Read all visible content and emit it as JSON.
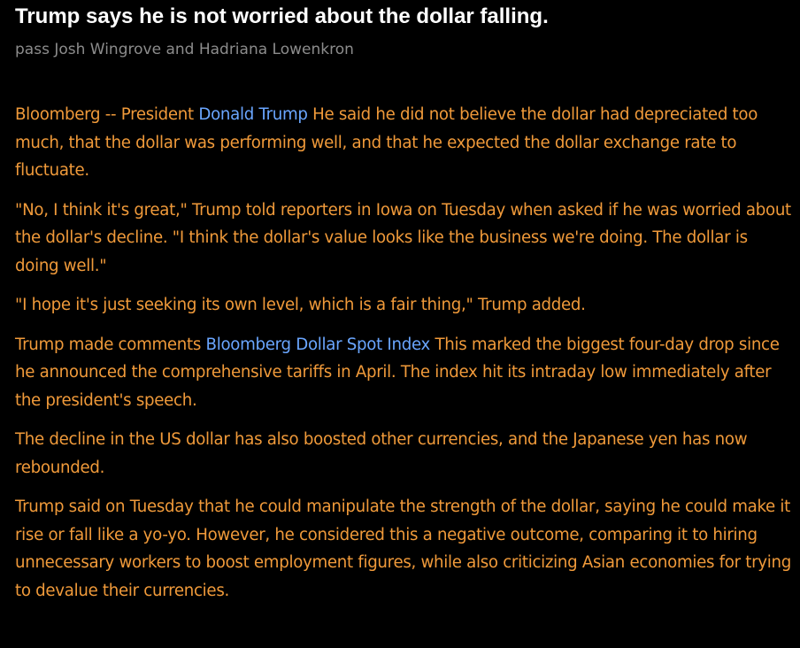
{
  "header": {
    "title": "Trump says he is not worried about the dollar falling.",
    "byline": "pass Josh Wingrove and Hadriana Lowenkron"
  },
  "paragraphs": [
    [
      {
        "text": "Bloomberg -- President ",
        "link": false
      },
      {
        "text": "Donald Trump",
        "link": true
      },
      {
        "text": " He said he did not believe the dollar had depreciated too much, that the dollar was performing well, and that he expected the dollar exchange rate to fluctuate.",
        "link": false
      }
    ],
    [
      {
        "text": "\"No, I think it's great,\" Trump told reporters in Iowa on Tuesday when asked if he was worried about the dollar's decline. \"I think the dollar's value looks like the business we're doing. The dollar is doing well.\"",
        "link": false
      }
    ],
    [
      {
        "text": "\"I hope it's just seeking its own level, which is a fair thing,\" Trump added.",
        "link": false
      }
    ],
    [
      {
        "text": "Trump made comments ",
        "link": false
      },
      {
        "text": "Bloomberg Dollar Spot Index",
        "link": true
      },
      {
        "text": " This marked the biggest four-day drop since he announced the comprehensive tariffs in April. The index hit its intraday low immediately after the president's speech.",
        "link": false
      }
    ],
    [
      {
        "text": "The decline in the US dollar has also boosted other currencies, and the Japanese yen has now rebounded.",
        "link": false
      }
    ],
    [
      {
        "text": "Trump said on Tuesday that he could manipulate the strength of the dollar, saying he could make it rise or fall like a yo-yo. However, he considered this a negative outcome, comparing it to hiring unnecessary workers to boost employment figures, while also criticizing Asian economies for trying to devalue their currencies.",
        "link": false
      }
    ]
  ]
}
